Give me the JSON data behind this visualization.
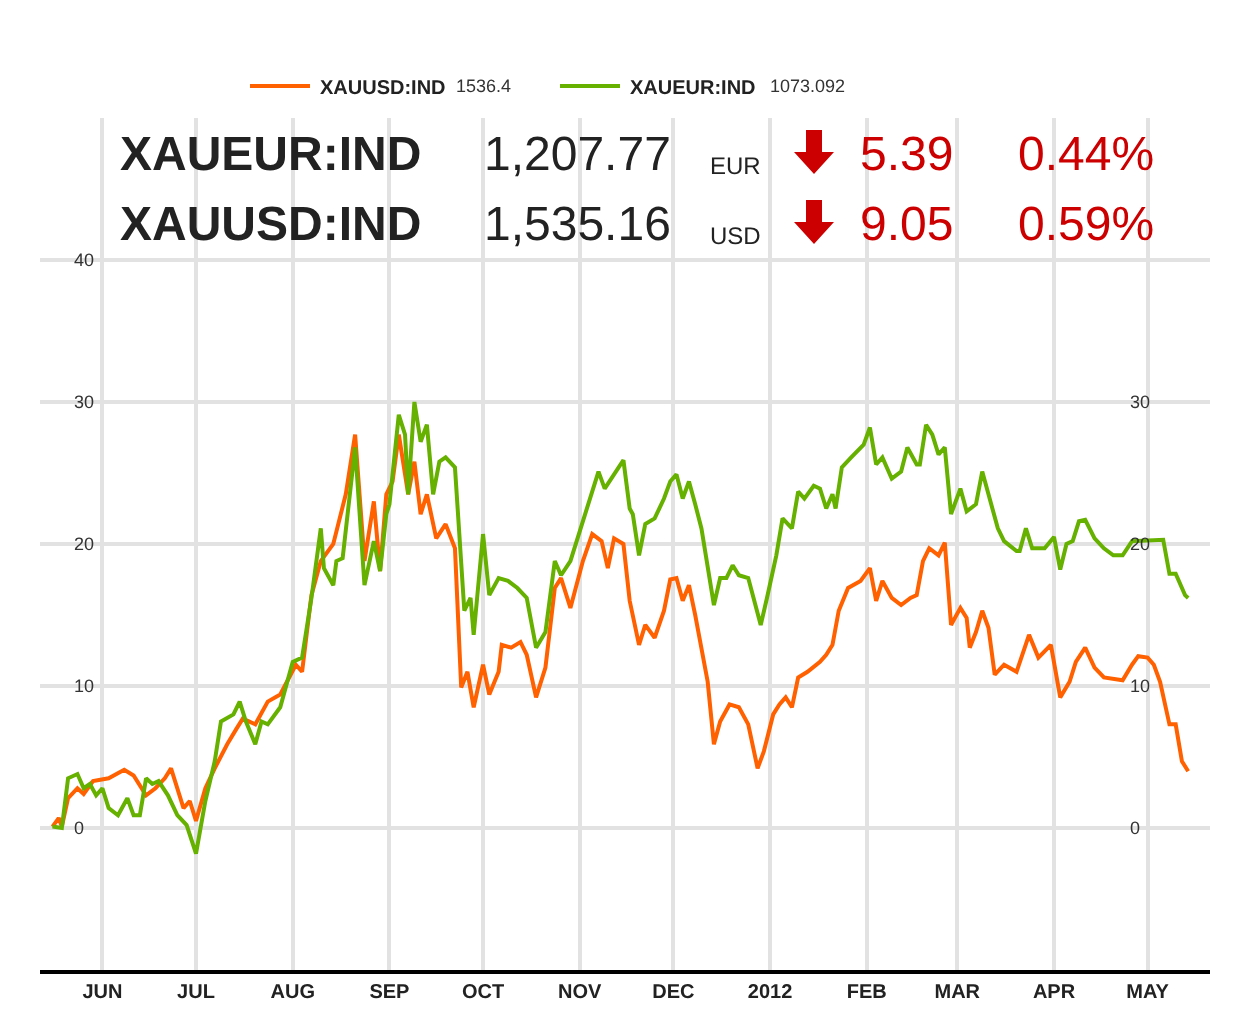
{
  "chart_data": {
    "type": "line",
    "annotations": [
      "XAUEUR:IND",
      "1,207.77",
      "EUR",
      "5.39",
      "0.44%",
      "XAUUSD:IND",
      "1,535.16",
      "USD",
      "9.05",
      "0.59%",
      "1536.4",
      "1073.092"
    ],
    "series": [
      {
        "name": "XAUUSD:IND",
        "color": "#ff6000",
        "x": [
          "2011-05-16",
          "2011-05-18",
          "2011-05-19",
          "2011-05-21",
          "2011-05-24",
          "2011-05-26",
          "2011-05-29",
          "2011-06-03",
          "2011-06-08",
          "2011-06-11",
          "2011-06-15",
          "2011-06-18",
          "2011-06-21",
          "2011-06-23",
          "2011-06-27",
          "2011-06-29",
          "2011-07-01",
          "2011-07-04",
          "2011-07-07",
          "2011-07-11",
          "2011-07-14",
          "2011-07-16",
          "2011-07-20",
          "2011-07-24",
          "2011-07-28",
          "2011-08-02",
          "2011-08-04",
          "2011-08-07",
          "2011-08-10",
          "2011-08-14",
          "2011-08-18",
          "2011-08-21",
          "2011-08-24",
          "2011-08-27",
          "2011-08-29",
          "2011-08-31",
          "2011-09-02",
          "2011-09-04",
          "2011-09-07",
          "2011-09-09",
          "2011-09-11",
          "2011-09-13",
          "2011-09-16",
          "2011-09-19",
          "2011-09-22",
          "2011-09-24",
          "2011-09-26",
          "2011-09-28",
          "2011-10-01",
          "2011-10-03",
          "2011-10-06",
          "2011-10-07",
          "2011-10-10",
          "2011-10-13",
          "2011-10-15",
          "2011-10-18",
          "2011-10-21",
          "2011-10-24",
          "2011-10-26",
          "2011-10-29",
          "2011-11-02",
          "2011-11-05",
          "2011-11-08",
          "2011-11-10",
          "2011-11-12",
          "2011-11-15",
          "2011-11-17",
          "2011-11-20",
          "2011-11-22",
          "2011-11-25",
          "2011-11-28",
          "2011-11-30",
          "2011-12-02",
          "2011-12-04",
          "2011-12-06",
          "2011-12-08",
          "2011-12-12",
          "2011-12-14",
          "2011-12-16",
          "2011-12-19",
          "2011-12-22",
          "2011-12-25",
          "2011-12-28",
          "2011-12-30",
          "2012-01-02",
          "2012-01-04",
          "2012-01-06",
          "2012-01-08",
          "2012-01-10",
          "2012-01-13",
          "2012-01-17",
          "2012-01-19",
          "2012-01-21",
          "2012-01-23",
          "2012-01-26",
          "2012-01-30",
          "2012-02-02",
          "2012-02-04",
          "2012-02-06",
          "2012-02-09",
          "2012-02-12",
          "2012-02-15",
          "2012-02-17",
          "2012-02-19",
          "2012-02-21",
          "2012-02-24",
          "2012-02-26",
          "2012-02-28",
          "2012-03-02",
          "2012-03-04",
          "2012-03-05",
          "2012-03-07",
          "2012-03-09",
          "2012-03-11",
          "2012-03-13",
          "2012-03-16",
          "2012-03-20",
          "2012-03-24",
          "2012-03-27",
          "2012-03-31",
          "2012-04-03",
          "2012-04-06",
          "2012-04-08",
          "2012-04-11",
          "2012-04-14",
          "2012-04-17",
          "2012-04-23",
          "2012-04-26",
          "2012-04-28",
          "2012-05-01",
          "2012-05-03",
          "2012-05-05",
          "2012-05-08",
          "2012-05-10",
          "2012-05-12",
          "2012-05-14"
        ],
        "values": [
          0.1,
          0.7,
          0.1,
          2.1,
          2.8,
          2.4,
          3.3,
          3.5,
          4.1,
          3.7,
          2.3,
          2.8,
          3.5,
          4.2,
          1.4,
          1.9,
          0.5,
          2.8,
          4.2,
          5.9,
          7.0,
          7.7,
          7.3,
          8.9,
          9.4,
          11.5,
          11.0,
          16.4,
          18.8,
          20.0,
          23.5,
          27.7,
          18.8,
          23.0,
          18.1,
          23.5,
          24.4,
          27.7,
          23.5,
          25.8,
          22.1,
          23.5,
          20.4,
          21.4,
          19.7,
          9.9,
          11.0,
          8.5,
          11.5,
          9.4,
          11.0,
          12.9,
          12.7,
          13.1,
          12.2,
          9.2,
          11.3,
          16.9,
          17.6,
          15.5,
          18.8,
          20.7,
          20.2,
          18.3,
          20.4,
          20.0,
          16.0,
          12.9,
          14.3,
          13.4,
          15.3,
          17.5,
          17.6,
          16.0,
          17.1,
          15.0,
          10.3,
          5.9,
          7.5,
          8.7,
          8.5,
          7.3,
          4.2,
          5.4,
          8.0,
          8.7,
          9.2,
          8.5,
          10.6,
          11.0,
          11.7,
          12.2,
          12.9,
          15.3,
          16.9,
          17.4,
          18.3,
          16.0,
          17.4,
          16.2,
          15.7,
          16.2,
          16.4,
          18.8,
          19.7,
          19.2,
          20.1,
          14.3,
          15.5,
          14.8,
          12.7,
          13.8,
          15.3,
          14.1,
          10.8,
          11.5,
          11.0,
          13.6,
          12.0,
          12.9,
          9.2,
          10.3,
          11.7,
          12.7,
          11.3,
          10.6,
          10.4,
          11.5,
          12.1,
          12.0,
          11.5,
          10.3,
          7.3,
          7.3,
          4.7,
          4.0
        ]
      },
      {
        "name": "XAUEUR:IND",
        "color": "#66b000",
        "x": [
          "2011-05-16",
          "2011-05-19",
          "2011-05-21",
          "2011-05-24",
          "2011-05-26",
          "2011-05-28",
          "2011-05-30",
          "2011-06-01",
          "2011-06-03",
          "2011-06-06",
          "2011-06-09",
          "2011-06-11",
          "2011-06-13",
          "2011-06-15",
          "2011-06-17",
          "2011-06-19",
          "2011-06-22",
          "2011-06-25",
          "2011-06-28",
          "2011-07-01",
          "2011-07-04",
          "2011-07-07",
          "2011-07-09",
          "2011-07-13",
          "2011-07-15",
          "2011-07-17",
          "2011-07-20",
          "2011-07-22",
          "2011-07-24",
          "2011-07-28",
          "2011-08-01",
          "2011-08-04",
          "2011-08-07",
          "2011-08-10",
          "2011-08-11",
          "2011-08-14",
          "2011-08-15",
          "2011-08-17",
          "2011-08-21",
          "2011-08-24",
          "2011-08-27",
          "2011-08-29",
          "2011-08-31",
          "2011-09-01",
          "2011-09-04",
          "2011-09-06",
          "2011-09-07",
          "2011-09-09",
          "2011-09-11",
          "2011-09-13",
          "2011-09-15",
          "2011-09-17",
          "2011-09-19",
          "2011-09-22",
          "2011-09-25",
          "2011-09-27",
          "2011-09-28",
          "2011-10-01",
          "2011-10-03",
          "2011-10-06",
          "2011-10-09",
          "2011-10-12",
          "2011-10-15",
          "2011-10-18",
          "2011-10-21",
          "2011-10-24",
          "2011-10-26",
          "2011-10-29",
          "2011-11-03",
          "2011-11-07",
          "2011-11-09",
          "2011-11-12",
          "2011-11-15",
          "2011-11-17",
          "2011-11-18",
          "2011-11-20",
          "2011-11-22",
          "2011-11-25",
          "2011-11-28",
          "2011-11-30",
          "2011-12-02",
          "2011-12-04",
          "2011-12-06",
          "2011-12-08",
          "2011-12-10",
          "2011-12-14",
          "2011-12-16",
          "2011-12-18",
          "2011-12-20",
          "2011-12-22",
          "2011-12-25",
          "2011-12-29",
          "2011-12-31",
          "2012-01-03",
          "2012-01-05",
          "2012-01-08",
          "2012-01-10",
          "2012-01-12",
          "2012-01-15",
          "2012-01-17",
          "2012-01-19",
          "2012-01-21",
          "2012-01-22",
          "2012-01-24",
          "2012-01-27",
          "2012-01-31",
          "2012-02-02",
          "2012-02-04",
          "2012-02-06",
          "2012-02-09",
          "2012-02-12",
          "2012-02-14",
          "2012-02-17",
          "2012-02-18",
          "2012-02-20",
          "2012-02-22",
          "2012-02-24",
          "2012-02-26",
          "2012-02-28",
          "2012-03-02",
          "2012-03-04",
          "2012-03-07",
          "2012-03-09",
          "2012-03-11",
          "2012-03-14",
          "2012-03-16",
          "2012-03-20",
          "2012-03-21",
          "2012-03-23",
          "2012-03-25",
          "2012-03-29",
          "2012-04-01",
          "2012-04-03",
          "2012-04-05",
          "2012-04-07",
          "2012-04-09",
          "2012-04-11",
          "2012-04-14",
          "2012-04-17",
          "2012-04-20",
          "2012-04-23",
          "2012-04-26",
          "2012-05-06",
          "2012-05-08",
          "2012-05-10",
          "2012-05-13",
          "2012-05-14"
        ],
        "values": [
          0.1,
          0.0,
          3.5,
          3.8,
          2.8,
          3.1,
          2.3,
          2.8,
          1.4,
          0.9,
          2.1,
          0.9,
          0.9,
          3.5,
          3.1,
          3.3,
          2.3,
          0.9,
          0.2,
          -1.8,
          1.9,
          4.7,
          7.5,
          8.0,
          8.9,
          7.5,
          5.9,
          7.5,
          7.3,
          8.5,
          11.7,
          12.0,
          16.2,
          21.1,
          18.3,
          17.1,
          18.8,
          19.0,
          26.8,
          17.1,
          20.2,
          18.1,
          22.1,
          22.8,
          29.1,
          27.7,
          23.5,
          30.0,
          27.2,
          28.4,
          23.5,
          25.8,
          26.1,
          25.4,
          15.3,
          16.2,
          13.6,
          20.7,
          16.4,
          17.6,
          17.4,
          16.9,
          16.2,
          12.7,
          13.8,
          18.8,
          17.8,
          18.8,
          22.3,
          25.1,
          23.9,
          24.9,
          25.9,
          22.5,
          22.1,
          19.2,
          21.4,
          21.8,
          23.2,
          24.4,
          24.9,
          23.2,
          24.4,
          22.8,
          21.1,
          15.7,
          17.6,
          17.6,
          18.5,
          17.8,
          17.6,
          14.3,
          16.2,
          19.2,
          21.8,
          21.1,
          23.7,
          23.2,
          24.1,
          23.9,
          22.5,
          23.5,
          22.5,
          25.4,
          26.1,
          27.0,
          28.2,
          25.6,
          26.1,
          24.6,
          25.1,
          26.8,
          25.6,
          25.6,
          28.4,
          27.7,
          26.3,
          26.8,
          22.1,
          23.9,
          22.3,
          22.8,
          25.1,
          23.5,
          21.1,
          20.2,
          19.5,
          19.5,
          21.1,
          19.7,
          19.7,
          20.5,
          18.2,
          20.0,
          20.2,
          21.6,
          21.7,
          20.4,
          19.7,
          19.2,
          19.2,
          20.2,
          20.3,
          17.9,
          17.9,
          16.4,
          16.2
        ]
      }
    ],
    "xlim": [
      "2011-05-12",
      "2012-05-21"
    ],
    "xticks": [
      {
        "value": "2011-06-01",
        "label": "JUN"
      },
      {
        "value": "2011-07-01",
        "label": "JUL"
      },
      {
        "value": "2011-08-01",
        "label": "AUG"
      },
      {
        "value": "2011-09-01",
        "label": "SEP"
      },
      {
        "value": "2011-10-01",
        "label": "OCT"
      },
      {
        "value": "2011-11-01",
        "label": "NOV"
      },
      {
        "value": "2011-12-01",
        "label": "DEC"
      },
      {
        "value": "2012-01-01",
        "label": "2012"
      },
      {
        "value": "2012-02-01",
        "label": "FEB"
      },
      {
        "value": "2012-03-01",
        "label": "MAR"
      },
      {
        "value": "2012-04-01",
        "label": "APR"
      },
      {
        "value": "2012-05-01",
        "label": "MAY"
      }
    ],
    "ylim": [
      -10,
      50
    ],
    "yticks": [
      0,
      10,
      20,
      30,
      40
    ],
    "y2lim": [
      -10,
      50
    ],
    "y2ticks": [
      0,
      10,
      20,
      30
    ],
    "grid": true,
    "legend": "top"
  }
}
